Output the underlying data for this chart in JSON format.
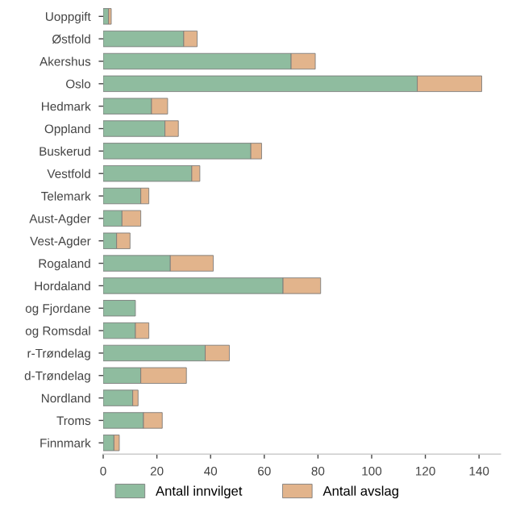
{
  "chart_data": {
    "type": "bar",
    "orientation": "horizontal",
    "stacked": true,
    "categories": [
      "Uoppgift",
      "Østfold",
      "Akershus",
      "Oslo",
      "Hedmark",
      "Oppland",
      "Buskerud",
      "Vestfold",
      "Telemark",
      "Aust-Agder",
      "Vest-Agder",
      "Rogaland",
      "Hordaland",
      "og Fjordane",
      "og Romsdal",
      "r-Trøndelag",
      "d-Trøndelag",
      "Nordland",
      "Troms",
      "Finnmark"
    ],
    "series": [
      {
        "name": "Antall innvilget",
        "color": "#8fbc9f",
        "values": [
          2,
          30,
          70,
          117,
          18,
          23,
          55,
          33,
          14,
          7,
          5,
          25,
          67,
          12,
          12,
          38,
          14,
          11,
          15,
          4
        ]
      },
      {
        "name": "Antall avslag",
        "color": "#e2b48c",
        "values": [
          1,
          5,
          9,
          24,
          6,
          5,
          4,
          3,
          3,
          7,
          5,
          16,
          14,
          null,
          5,
          9,
          17,
          2,
          7,
          2
        ]
      }
    ],
    "xlim": [
      0,
      148
    ],
    "xticks": [
      0,
      20,
      40,
      60,
      80,
      100,
      120,
      140
    ],
    "grid": false,
    "legend": "bottom"
  }
}
